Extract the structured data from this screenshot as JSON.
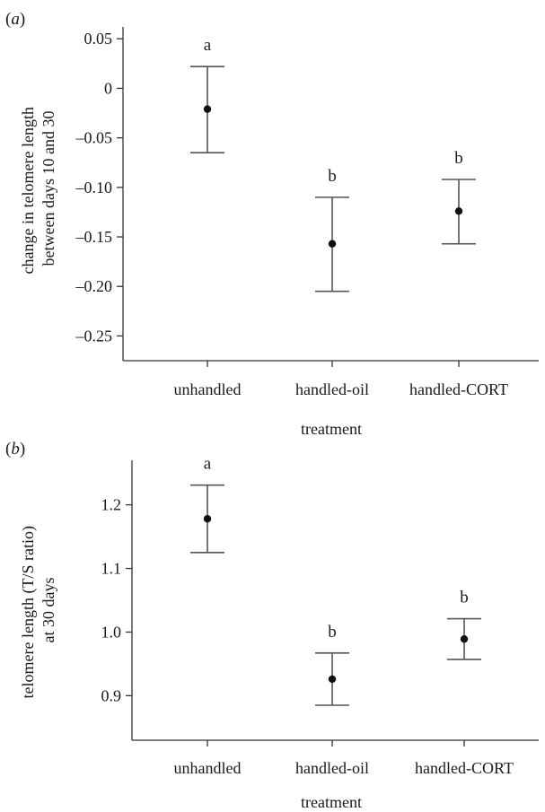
{
  "chart_data": [
    {
      "type": "scatter",
      "panel_label": "a",
      "ylabel_lines": [
        "change in telomere length",
        "between days 10 and 30"
      ],
      "xlabel": "treatment",
      "categories": [
        "unhandled",
        "handled-oil",
        "handled-CORT"
      ],
      "values": [
        -0.021,
        -0.157,
        -0.124
      ],
      "error_lower": [
        -0.065,
        -0.205,
        -0.157
      ],
      "error_upper": [
        0.022,
        -0.11,
        -0.092
      ],
      "significance_letters": [
        "a",
        "b",
        "b"
      ],
      "yticks": [
        0.05,
        0,
        -0.05,
        -0.1,
        -0.15,
        -0.2,
        -0.25
      ],
      "ytick_labels": [
        "0.05",
        "0",
        "–0.05",
        "–0.10",
        "–0.15",
        "–0.20",
        "–0.25"
      ],
      "ylim": [
        -0.275,
        0.062
      ],
      "grid": false,
      "colors": {
        "points": "#111111",
        "error_bars": "#555555"
      }
    },
    {
      "type": "scatter",
      "panel_label": "b",
      "ylabel_lines": [
        "telomere length (T/S ratio)",
        "at 30 days"
      ],
      "xlabel": "treatment",
      "categories": [
        "unhandled",
        "handled-oil",
        "handled-CORT"
      ],
      "values": [
        1.178,
        0.926,
        0.989
      ],
      "error_lower": [
        1.125,
        0.885,
        0.957
      ],
      "error_upper": [
        1.231,
        0.967,
        1.021
      ],
      "significance_letters": [
        "a",
        "b",
        "b"
      ],
      "yticks": [
        1.2,
        1.1,
        1.0,
        0.9
      ],
      "ytick_labels": [
        "1.2",
        "1.1",
        "1.0",
        "0.9"
      ],
      "ylim": [
        0.83,
        1.27
      ],
      "grid": false,
      "colors": {
        "points": "#111111",
        "error_bars": "#555555"
      }
    }
  ]
}
